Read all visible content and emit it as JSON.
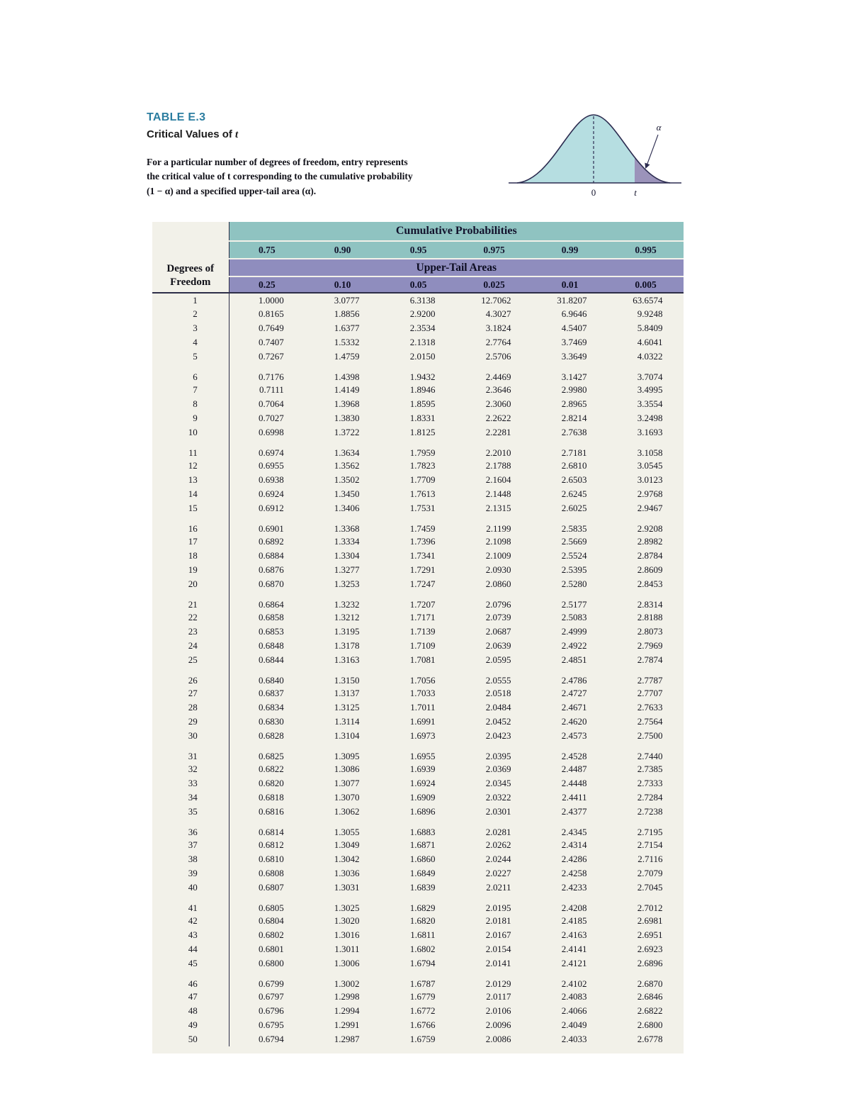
{
  "page": {
    "table_label": "TABLE E.3",
    "subtitle_prefix": "Critical Values of ",
    "subtitle_t": "t",
    "description_lines": [
      "For a particular number of degrees of freedom, entry represents",
      "the critical value of t corresponding to the cumulative probability",
      "(1 − α) and a specified upper-tail area (α)."
    ]
  },
  "figure": {
    "labels": {
      "alpha": "α",
      "zero": "0",
      "t": "t"
    }
  },
  "colors": {
    "title_blue": "#2b7da0",
    "teal_band": "#8fc3c1",
    "purple_band": "#8f8dbe",
    "body_bg": "#f2f1e9",
    "curve_fill": "#b6dee1",
    "tail_fill": "#9b93ba"
  },
  "table": {
    "header": {
      "cumulative_title": "Cumulative Probabilities",
      "cumulative_values": [
        "0.75",
        "0.90",
        "0.95",
        "0.975",
        "0.99",
        "0.995"
      ],
      "upper_tail_title": "Upper-Tail Areas",
      "upper_tail_values": [
        "0.25",
        "0.10",
        "0.05",
        "0.025",
        "0.01",
        "0.005"
      ],
      "df_label_line1": "Degrees of",
      "df_label_line2": "Freedom"
    },
    "rows": [
      {
        "df": 1,
        "values": [
          "1.0000",
          "3.0777",
          "6.3138",
          "12.7062",
          "31.8207",
          "63.6574"
        ]
      },
      {
        "df": 2,
        "values": [
          "0.8165",
          "1.8856",
          "2.9200",
          "4.3027",
          "6.9646",
          "9.9248"
        ]
      },
      {
        "df": 3,
        "values": [
          "0.7649",
          "1.6377",
          "2.3534",
          "3.1824",
          "4.5407",
          "5.8409"
        ]
      },
      {
        "df": 4,
        "values": [
          "0.7407",
          "1.5332",
          "2.1318",
          "2.7764",
          "3.7469",
          "4.6041"
        ]
      },
      {
        "df": 5,
        "values": [
          "0.7267",
          "1.4759",
          "2.0150",
          "2.5706",
          "3.3649",
          "4.0322"
        ]
      },
      {
        "df": 6,
        "values": [
          "0.7176",
          "1.4398",
          "1.9432",
          "2.4469",
          "3.1427",
          "3.7074"
        ]
      },
      {
        "df": 7,
        "values": [
          "0.7111",
          "1.4149",
          "1.8946",
          "2.3646",
          "2.9980",
          "3.4995"
        ]
      },
      {
        "df": 8,
        "values": [
          "0.7064",
          "1.3968",
          "1.8595",
          "2.3060",
          "2.8965",
          "3.3554"
        ]
      },
      {
        "df": 9,
        "values": [
          "0.7027",
          "1.3830",
          "1.8331",
          "2.2622",
          "2.8214",
          "3.2498"
        ]
      },
      {
        "df": 10,
        "values": [
          "0.6998",
          "1.3722",
          "1.8125",
          "2.2281",
          "2.7638",
          "3.1693"
        ]
      },
      {
        "df": 11,
        "values": [
          "0.6974",
          "1.3634",
          "1.7959",
          "2.2010",
          "2.7181",
          "3.1058"
        ]
      },
      {
        "df": 12,
        "values": [
          "0.6955",
          "1.3562",
          "1.7823",
          "2.1788",
          "2.6810",
          "3.0545"
        ]
      },
      {
        "df": 13,
        "values": [
          "0.6938",
          "1.3502",
          "1.7709",
          "2.1604",
          "2.6503",
          "3.0123"
        ]
      },
      {
        "df": 14,
        "values": [
          "0.6924",
          "1.3450",
          "1.7613",
          "2.1448",
          "2.6245",
          "2.9768"
        ]
      },
      {
        "df": 15,
        "values": [
          "0.6912",
          "1.3406",
          "1.7531",
          "2.1315",
          "2.6025",
          "2.9467"
        ]
      },
      {
        "df": 16,
        "values": [
          "0.6901",
          "1.3368",
          "1.7459",
          "2.1199",
          "2.5835",
          "2.9208"
        ]
      },
      {
        "df": 17,
        "values": [
          "0.6892",
          "1.3334",
          "1.7396",
          "2.1098",
          "2.5669",
          "2.8982"
        ]
      },
      {
        "df": 18,
        "values": [
          "0.6884",
          "1.3304",
          "1.7341",
          "2.1009",
          "2.5524",
          "2.8784"
        ]
      },
      {
        "df": 19,
        "values": [
          "0.6876",
          "1.3277",
          "1.7291",
          "2.0930",
          "2.5395",
          "2.8609"
        ]
      },
      {
        "df": 20,
        "values": [
          "0.6870",
          "1.3253",
          "1.7247",
          "2.0860",
          "2.5280",
          "2.8453"
        ]
      },
      {
        "df": 21,
        "values": [
          "0.6864",
          "1.3232",
          "1.7207",
          "2.0796",
          "2.5177",
          "2.8314"
        ]
      },
      {
        "df": 22,
        "values": [
          "0.6858",
          "1.3212",
          "1.7171",
          "2.0739",
          "2.5083",
          "2.8188"
        ]
      },
      {
        "df": 23,
        "values": [
          "0.6853",
          "1.3195",
          "1.7139",
          "2.0687",
          "2.4999",
          "2.8073"
        ]
      },
      {
        "df": 24,
        "values": [
          "0.6848",
          "1.3178",
          "1.7109",
          "2.0639",
          "2.4922",
          "2.7969"
        ]
      },
      {
        "df": 25,
        "values": [
          "0.6844",
          "1.3163",
          "1.7081",
          "2.0595",
          "2.4851",
          "2.7874"
        ]
      },
      {
        "df": 26,
        "values": [
          "0.6840",
          "1.3150",
          "1.7056",
          "2.0555",
          "2.4786",
          "2.7787"
        ]
      },
      {
        "df": 27,
        "values": [
          "0.6837",
          "1.3137",
          "1.7033",
          "2.0518",
          "2.4727",
          "2.7707"
        ]
      },
      {
        "df": 28,
        "values": [
          "0.6834",
          "1.3125",
          "1.7011",
          "2.0484",
          "2.4671",
          "2.7633"
        ]
      },
      {
        "df": 29,
        "values": [
          "0.6830",
          "1.3114",
          "1.6991",
          "2.0452",
          "2.4620",
          "2.7564"
        ]
      },
      {
        "df": 30,
        "values": [
          "0.6828",
          "1.3104",
          "1.6973",
          "2.0423",
          "2.4573",
          "2.7500"
        ]
      },
      {
        "df": 31,
        "values": [
          "0.6825",
          "1.3095",
          "1.6955",
          "2.0395",
          "2.4528",
          "2.7440"
        ]
      },
      {
        "df": 32,
        "values": [
          "0.6822",
          "1.3086",
          "1.6939",
          "2.0369",
          "2.4487",
          "2.7385"
        ]
      },
      {
        "df": 33,
        "values": [
          "0.6820",
          "1.3077",
          "1.6924",
          "2.0345",
          "2.4448",
          "2.7333"
        ]
      },
      {
        "df": 34,
        "values": [
          "0.6818",
          "1.3070",
          "1.6909",
          "2.0322",
          "2.4411",
          "2.7284"
        ]
      },
      {
        "df": 35,
        "values": [
          "0.6816",
          "1.3062",
          "1.6896",
          "2.0301",
          "2.4377",
          "2.7238"
        ]
      },
      {
        "df": 36,
        "values": [
          "0.6814",
          "1.3055",
          "1.6883",
          "2.0281",
          "2.4345",
          "2.7195"
        ]
      },
      {
        "df": 37,
        "values": [
          "0.6812",
          "1.3049",
          "1.6871",
          "2.0262",
          "2.4314",
          "2.7154"
        ]
      },
      {
        "df": 38,
        "values": [
          "0.6810",
          "1.3042",
          "1.6860",
          "2.0244",
          "2.4286",
          "2.7116"
        ]
      },
      {
        "df": 39,
        "values": [
          "0.6808",
          "1.3036",
          "1.6849",
          "2.0227",
          "2.4258",
          "2.7079"
        ]
      },
      {
        "df": 40,
        "values": [
          "0.6807",
          "1.3031",
          "1.6839",
          "2.0211",
          "2.4233",
          "2.7045"
        ]
      },
      {
        "df": 41,
        "values": [
          "0.6805",
          "1.3025",
          "1.6829",
          "2.0195",
          "2.4208",
          "2.7012"
        ]
      },
      {
        "df": 42,
        "values": [
          "0.6804",
          "1.3020",
          "1.6820",
          "2.0181",
          "2.4185",
          "2.6981"
        ]
      },
      {
        "df": 43,
        "values": [
          "0.6802",
          "1.3016",
          "1.6811",
          "2.0167",
          "2.4163",
          "2.6951"
        ]
      },
      {
        "df": 44,
        "values": [
          "0.6801",
          "1.3011",
          "1.6802",
          "2.0154",
          "2.4141",
          "2.6923"
        ]
      },
      {
        "df": 45,
        "values": [
          "0.6800",
          "1.3006",
          "1.6794",
          "2.0141",
          "2.4121",
          "2.6896"
        ]
      },
      {
        "df": 46,
        "values": [
          "0.6799",
          "1.3002",
          "1.6787",
          "2.0129",
          "2.4102",
          "2.6870"
        ]
      },
      {
        "df": 47,
        "values": [
          "0.6797",
          "1.2998",
          "1.6779",
          "2.0117",
          "2.4083",
          "2.6846"
        ]
      },
      {
        "df": 48,
        "values": [
          "0.6796",
          "1.2994",
          "1.6772",
          "2.0106",
          "2.4066",
          "2.6822"
        ]
      },
      {
        "df": 49,
        "values": [
          "0.6795",
          "1.2991",
          "1.6766",
          "2.0096",
          "2.4049",
          "2.6800"
        ]
      },
      {
        "df": 50,
        "values": [
          "0.6794",
          "1.2987",
          "1.6759",
          "2.0086",
          "2.4033",
          "2.6778"
        ]
      }
    ]
  }
}
